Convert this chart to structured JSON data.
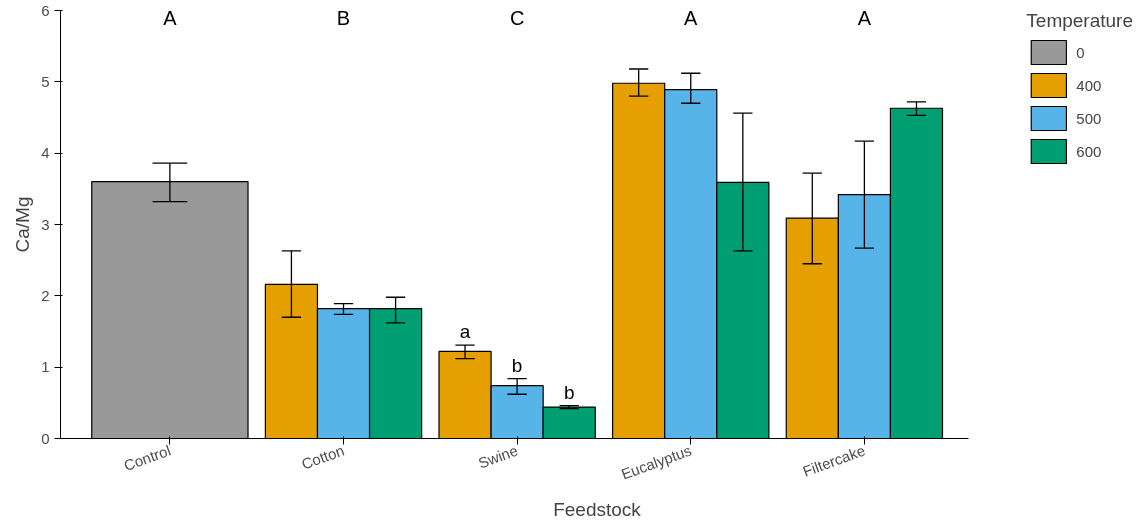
{
  "chart_data": {
    "type": "bar",
    "xlabel": "Feedstock",
    "ylabel": "Ca/Mg",
    "legend_title": "Temperature",
    "categories": [
      "Control",
      "Cotton",
      "Swine",
      "Eucalyptus",
      "Filtercake"
    ],
    "series": [
      {
        "name": "0",
        "color": "#999999",
        "values": [
          3.6,
          null,
          null,
          null,
          null
        ],
        "errors": [
          [
            3.32,
            3.86
          ],
          null,
          null,
          null,
          null
        ]
      },
      {
        "name": "400",
        "color": "#e69f00",
        "values": [
          null,
          2.16,
          1.22,
          4.98,
          3.09
        ],
        "errors": [
          null,
          [
            1.7,
            2.63
          ],
          [
            1.12,
            1.31
          ],
          [
            4.8,
            5.18
          ],
          [
            2.45,
            3.72
          ]
        ]
      },
      {
        "name": "500",
        "color": "#56b4e9",
        "values": [
          null,
          1.82,
          0.74,
          4.89,
          3.42
        ],
        "errors": [
          null,
          [
            1.74,
            1.89
          ],
          [
            0.62,
            0.84
          ],
          [
            4.7,
            5.12
          ],
          [
            2.67,
            4.17
          ]
        ]
      },
      {
        "name": "600",
        "color": "#009e73",
        "values": [
          null,
          1.82,
          0.44,
          3.59,
          4.63
        ],
        "errors": [
          null,
          [
            1.62,
            1.98
          ],
          [
            0.42,
            0.46
          ],
          [
            2.63,
            4.56
          ],
          [
            4.53,
            4.72
          ]
        ]
      }
    ],
    "annotations": [
      "A",
      "B",
      "C",
      "A",
      "A",
      "a",
      "b",
      "b"
    ],
    "ylim": [
      0,
      6
    ],
    "yticks": [
      0,
      1,
      2,
      3,
      4,
      5,
      6
    ],
    "grid": false,
    "legend": "right"
  }
}
